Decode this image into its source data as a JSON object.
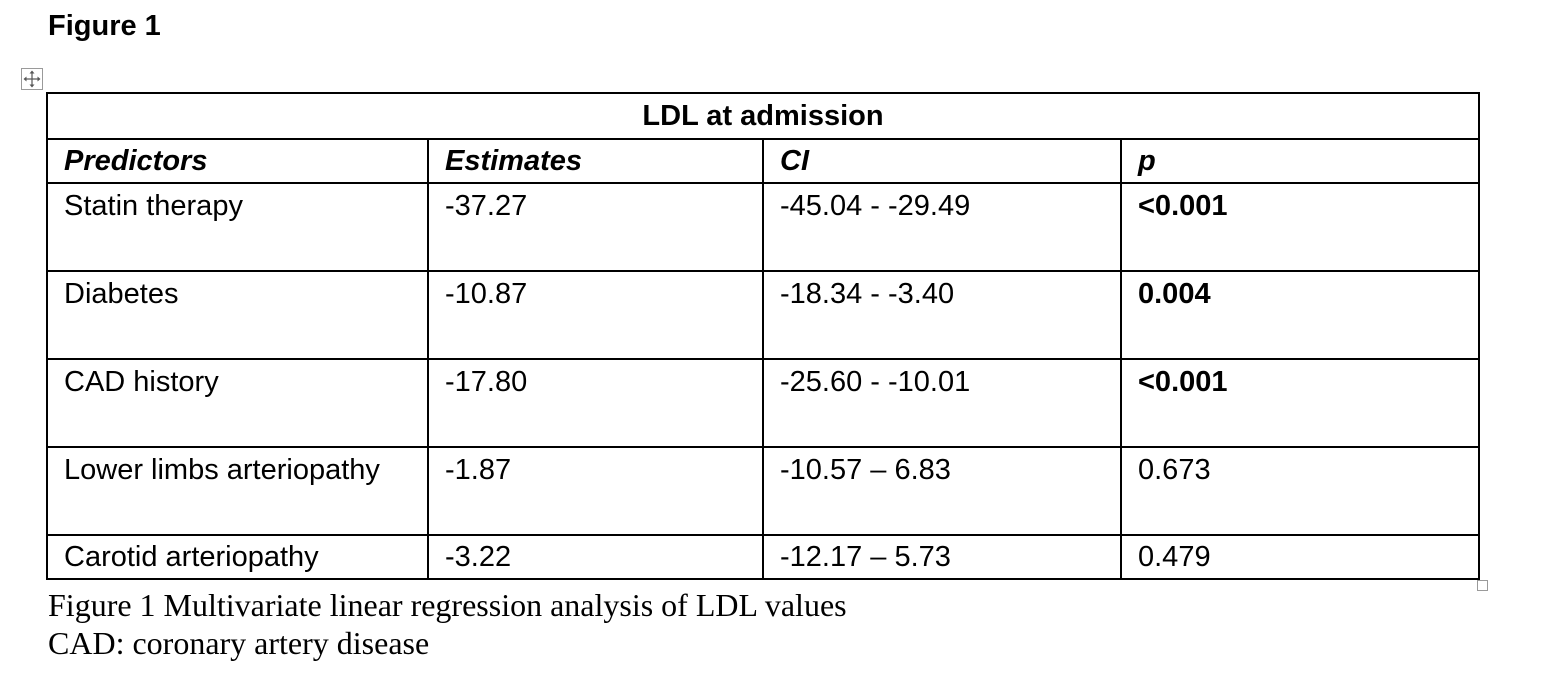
{
  "heading": "Figure 1",
  "table": {
    "group_title": "LDL at admission",
    "columns": [
      "Predictors",
      "Estimates",
      "CI",
      "p"
    ],
    "rows": [
      {
        "predictor": "Statin therapy",
        "estimate": "-37.27",
        "ci": "-45.04 - -29.49",
        "p": "<0.001",
        "p_bold": true
      },
      {
        "predictor": "Diabetes",
        "estimate": "-10.87",
        "ci": "-18.34 - -3.40",
        "p": "0.004",
        "p_bold": true
      },
      {
        "predictor": "CAD history",
        "estimate": "-17.80",
        "ci": "-25.60 - -10.01",
        "p": "<0.001",
        "p_bold": true
      },
      {
        "predictor": "Lower limbs arteriopathy",
        "estimate": "-1.87",
        "ci": "-10.57 – 6.83",
        "p": "0.673",
        "p_bold": false
      },
      {
        "predictor": "Carotid arteriopathy",
        "estimate": "-3.22",
        "ci": "-12.17 – 5.73",
        "p": "0.479",
        "p_bold": false
      }
    ]
  },
  "caption": {
    "line1": "Figure 1 Multivariate linear regression analysis of LDL values",
    "line2": "CAD: coronary artery disease"
  },
  "icons": {
    "table_move_handle": "move-arrows-icon",
    "table_resize_handle": "resize-square-icon"
  }
}
